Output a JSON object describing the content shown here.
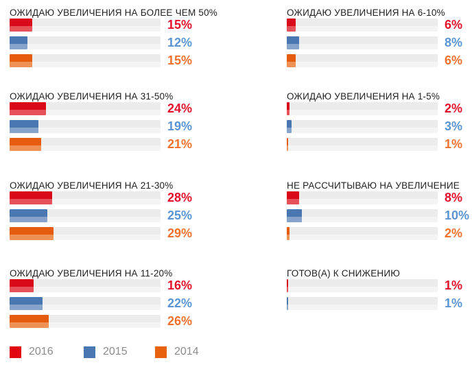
{
  "chart_data": {
    "type": "bar",
    "orientation": "horizontal",
    "title": "",
    "unit": "%",
    "xlim": [
      0,
      100
    ],
    "grid": false,
    "axes_visible": false,
    "legend_position": "bottom-left",
    "track_color": "#ececec",
    "series": [
      {
        "name": "2016",
        "bar_color": "#d9091a",
        "bar_color_light": "#e55059",
        "label_color": "#e60f2b"
      },
      {
        "name": "2015",
        "bar_color": "#4a77b2",
        "bar_color_light": "#85a3cb",
        "label_color": "#5b94d2"
      },
      {
        "name": "2014",
        "bar_color": "#e65c0e",
        "bar_color_light": "#ef9155",
        "label_color": "#f2712d"
      }
    ],
    "groups": [
      {
        "title": "ОЖИДАЮ УВЕЛИЧЕНИЯ НА БОЛЕЕ ЧЕМ 50%",
        "values": [
          15,
          12,
          15
        ]
      },
      {
        "title": "ОЖИДАЮ УВЕЛИЧЕНИЯ НА 31-50%",
        "values": [
          24,
          19,
          21
        ]
      },
      {
        "title": "ОЖИДАЮ УВЕЛИЧЕНИЯ НА 21-30%",
        "values": [
          28,
          25,
          29
        ]
      },
      {
        "title": "ОЖИДАЮ УВЕЛИЧЕНИЯ НА 11-20%",
        "values": [
          16,
          22,
          26
        ]
      },
      {
        "title": "ОЖИДАЮ УВЕЛИЧЕНИЯ НА 6-10%",
        "values": [
          6,
          8,
          6
        ]
      },
      {
        "title": "ОЖИДАЮ УВЕЛИЧЕНИЯ НА 1-5%",
        "values": [
          2,
          3,
          1
        ]
      },
      {
        "title": "НЕ РАССЧИТЫВАЮ НА УВЕЛИЧЕНИЕ",
        "values": [
          8,
          10,
          2
        ]
      },
      {
        "title": "ГОТОВ(А) К СНИЖЕНИЮ",
        "values": [
          1,
          1,
          null
        ]
      }
    ],
    "legend": [
      {
        "label": "2016",
        "color": "#e20613"
      },
      {
        "label": "2015",
        "color": "#4a77b2"
      },
      {
        "label": "2014",
        "color": "#e8610e"
      }
    ]
  }
}
